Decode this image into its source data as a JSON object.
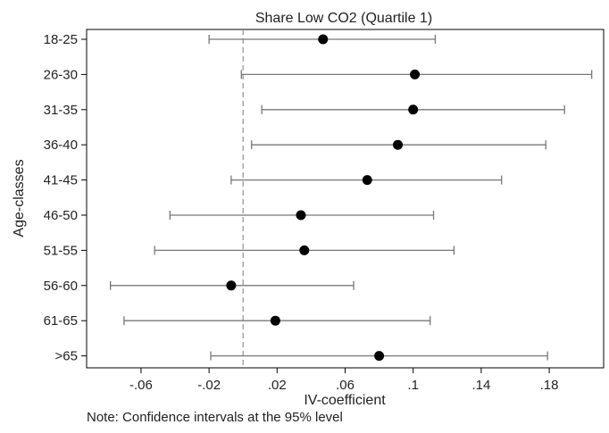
{
  "chart_data": {
    "type": "scatter",
    "subtype": "coefficient-plot-with-confidence-intervals",
    "title": "Share Low CO2 (Quartile 1)",
    "xlabel": "IV-coefficient",
    "ylabel": "Age-classes",
    "note": "Note: Confidence intervals at the 95% level",
    "xlim": [
      -0.092,
      0.212
    ],
    "x_ticks": [
      {
        "value": -0.06,
        "label": "-.06"
      },
      {
        "value": -0.02,
        "label": "-.02"
      },
      {
        "value": 0.02,
        "label": ".02"
      },
      {
        "value": 0.06,
        "label": ".06"
      },
      {
        "value": 0.1,
        "label": ".1"
      },
      {
        "value": 0.14,
        "label": ".14"
      },
      {
        "value": 0.18,
        "label": ".18"
      }
    ],
    "reference_line": {
      "x": 0.0,
      "style": "dashed"
    },
    "grid": false,
    "series": [
      {
        "category": "18-25",
        "estimate": 0.047,
        "ci_low": -0.02,
        "ci_high": 0.113
      },
      {
        "category": "26-30",
        "estimate": 0.101,
        "ci_low": -0.001,
        "ci_high": 0.205
      },
      {
        "category": "31-35",
        "estimate": 0.1,
        "ci_low": 0.011,
        "ci_high": 0.189
      },
      {
        "category": "36-40",
        "estimate": 0.091,
        "ci_low": 0.005,
        "ci_high": 0.178
      },
      {
        "category": "41-45",
        "estimate": 0.073,
        "ci_low": -0.007,
        "ci_high": 0.152
      },
      {
        "category": "46-50",
        "estimate": 0.034,
        "ci_low": -0.043,
        "ci_high": 0.112
      },
      {
        "category": "51-55",
        "estimate": 0.036,
        "ci_low": -0.052,
        "ci_high": 0.124
      },
      {
        "category": "56-60",
        "estimate": -0.007,
        "ci_low": -0.078,
        "ci_high": 0.065
      },
      {
        "category": "61-65",
        "estimate": 0.019,
        "ci_low": -0.07,
        "ci_high": 0.11
      },
      {
        "category": ">65",
        "estimate": 0.08,
        "ci_low": -0.019,
        "ci_high": 0.179
      }
    ],
    "colors": {
      "point": "#000000",
      "ci_line": "#777777",
      "reference": "#9a9a9a",
      "axis": "#000000"
    }
  }
}
